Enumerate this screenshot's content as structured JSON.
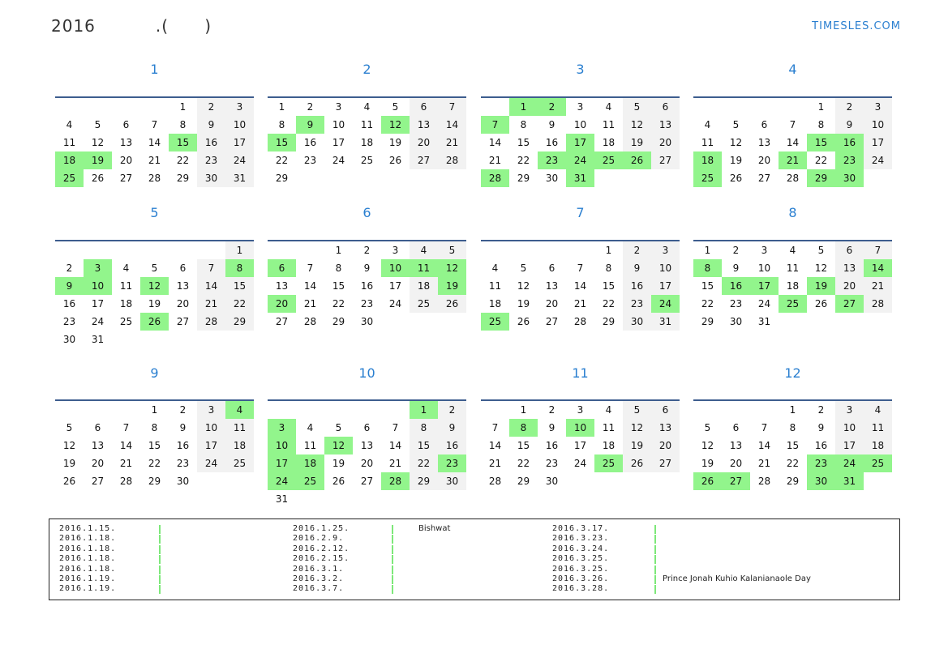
{
  "header": {
    "year": "2016",
    "title_rest": ".(      )",
    "brand": "TIMESLES.COM"
  },
  "colors": {
    "accent": "#2a7fd0",
    "holiday": "#92f58c",
    "weekend": "#f2f2f2",
    "rule": "#3d5d8e"
  },
  "months": [
    {
      "name": "1",
      "holidays": [
        15,
        18,
        19,
        25
      ],
      "weeks": [
        [
          0,
          0,
          0,
          0,
          1,
          2,
          3
        ],
        [
          4,
          5,
          6,
          7,
          8,
          9,
          10
        ],
        [
          11,
          12,
          13,
          14,
          15,
          16,
          17
        ],
        [
          18,
          19,
          20,
          21,
          22,
          23,
          24
        ],
        [
          25,
          26,
          27,
          28,
          29,
          30,
          31
        ]
      ]
    },
    {
      "name": "2",
      "holidays": [
        9,
        12,
        15
      ],
      "weeks": [
        [
          1,
          2,
          3,
          4,
          5,
          6,
          7
        ],
        [
          8,
          9,
          10,
          11,
          12,
          13,
          14
        ],
        [
          15,
          16,
          17,
          18,
          19,
          20,
          21
        ],
        [
          22,
          23,
          24,
          25,
          26,
          27,
          28
        ],
        [
          29,
          0,
          0,
          0,
          0,
          0,
          0
        ]
      ]
    },
    {
      "name": "3",
      "holidays": [
        1,
        2,
        7,
        17,
        23,
        24,
        25,
        26,
        28,
        31
      ],
      "weeks": [
        [
          0,
          1,
          2,
          3,
          4,
          5,
          6
        ],
        [
          7,
          8,
          9,
          10,
          11,
          12,
          13
        ],
        [
          14,
          15,
          16,
          17,
          18,
          19,
          20
        ],
        [
          21,
          22,
          23,
          24,
          25,
          26,
          27
        ],
        [
          28,
          29,
          30,
          31,
          0,
          0,
          0
        ]
      ]
    },
    {
      "name": "4",
      "holidays": [
        15,
        16,
        18,
        21,
        23,
        25,
        29,
        30
      ],
      "weeks": [
        [
          0,
          0,
          0,
          0,
          1,
          2,
          3
        ],
        [
          4,
          5,
          6,
          7,
          8,
          9,
          10
        ],
        [
          11,
          12,
          13,
          14,
          15,
          16,
          17
        ],
        [
          18,
          19,
          20,
          21,
          22,
          23,
          24
        ],
        [
          25,
          26,
          27,
          28,
          29,
          30,
          0
        ]
      ]
    },
    {
      "name": "5",
      "holidays": [
        3,
        8,
        9,
        10,
        12,
        26
      ],
      "weeks": [
        [
          0,
          0,
          0,
          0,
          0,
          0,
          1
        ],
        [
          2,
          3,
          4,
          5,
          6,
          7,
          8
        ],
        [
          9,
          10,
          11,
          12,
          13,
          14,
          15
        ],
        [
          16,
          17,
          18,
          19,
          20,
          21,
          22
        ],
        [
          23,
          24,
          25,
          26,
          27,
          28,
          29
        ],
        [
          30,
          31,
          0,
          0,
          0,
          0,
          0
        ]
      ]
    },
    {
      "name": "6",
      "holidays": [
        6,
        10,
        11,
        12,
        19,
        20
      ],
      "weeks": [
        [
          0,
          0,
          1,
          2,
          3,
          4,
          5
        ],
        [
          6,
          7,
          8,
          9,
          10,
          11,
          12
        ],
        [
          13,
          14,
          15,
          16,
          17,
          18,
          19
        ],
        [
          20,
          21,
          22,
          23,
          24,
          25,
          26
        ],
        [
          27,
          28,
          29,
          30,
          0,
          0,
          0
        ]
      ]
    },
    {
      "name": "7",
      "holidays": [
        24,
        25
      ],
      "weeks": [
        [
          0,
          0,
          0,
          0,
          1,
          2,
          3
        ],
        [
          4,
          5,
          6,
          7,
          8,
          9,
          10
        ],
        [
          11,
          12,
          13,
          14,
          15,
          16,
          17
        ],
        [
          18,
          19,
          20,
          21,
          22,
          23,
          24
        ],
        [
          25,
          26,
          27,
          28,
          29,
          30,
          31
        ]
      ]
    },
    {
      "name": "8",
      "holidays": [
        8,
        14,
        16,
        17,
        19,
        25,
        27
      ],
      "weeks": [
        [
          1,
          2,
          3,
          4,
          5,
          6,
          7
        ],
        [
          8,
          9,
          10,
          11,
          12,
          13,
          14
        ],
        [
          15,
          16,
          17,
          18,
          19,
          20,
          21
        ],
        [
          22,
          23,
          24,
          25,
          26,
          27,
          28
        ],
        [
          29,
          30,
          31,
          0,
          0,
          0,
          0
        ]
      ]
    },
    {
      "name": "9",
      "holidays": [
        4
      ],
      "weeks": [
        [
          0,
          0,
          0,
          1,
          2,
          3,
          4
        ],
        [
          5,
          6,
          7,
          8,
          9,
          10,
          11
        ],
        [
          12,
          13,
          14,
          15,
          16,
          17,
          18
        ],
        [
          19,
          20,
          21,
          22,
          23,
          24,
          25
        ],
        [
          26,
          27,
          28,
          29,
          30,
          0,
          0
        ]
      ]
    },
    {
      "name": "10",
      "holidays": [
        1,
        3,
        10,
        12,
        17,
        18,
        23,
        24,
        25,
        28
      ],
      "weeks": [
        [
          0,
          0,
          0,
          0,
          0,
          1,
          2
        ],
        [
          3,
          4,
          5,
          6,
          7,
          8,
          9
        ],
        [
          10,
          11,
          12,
          13,
          14,
          15,
          16
        ],
        [
          17,
          18,
          19,
          20,
          21,
          22,
          23
        ],
        [
          24,
          25,
          26,
          27,
          28,
          29,
          30
        ],
        [
          31,
          0,
          0,
          0,
          0,
          0,
          0
        ]
      ]
    },
    {
      "name": "11",
      "holidays": [
        8,
        10,
        25
      ],
      "weeks": [
        [
          0,
          1,
          2,
          3,
          4,
          5,
          6
        ],
        [
          7,
          8,
          9,
          10,
          11,
          12,
          13
        ],
        [
          14,
          15,
          16,
          17,
          18,
          19,
          20
        ],
        [
          21,
          22,
          23,
          24,
          25,
          26,
          27
        ],
        [
          28,
          29,
          30,
          0,
          0,
          0,
          0
        ]
      ]
    },
    {
      "name": "12",
      "holidays": [
        23,
        24,
        25,
        26,
        27,
        30,
        31
      ],
      "weeks": [
        [
          0,
          0,
          0,
          1,
          2,
          3,
          4
        ],
        [
          5,
          6,
          7,
          8,
          9,
          10,
          11
        ],
        [
          12,
          13,
          14,
          15,
          16,
          17,
          18
        ],
        [
          19,
          20,
          21,
          22,
          23,
          24,
          25
        ],
        [
          26,
          27,
          28,
          29,
          30,
          31,
          0
        ]
      ]
    }
  ],
  "holiday_list": [
    [
      {
        "date": "2016.1.15.",
        "name": ""
      },
      {
        "date": "2016.1.18.",
        "name": ""
      },
      {
        "date": "2016.1.18.",
        "name": ""
      },
      {
        "date": "2016.1.18.",
        "name": ""
      },
      {
        "date": "2016.1.18.",
        "name": ""
      },
      {
        "date": "2016.1.19.",
        "name": ""
      },
      {
        "date": "2016.1.19.",
        "name": ""
      }
    ],
    [
      {
        "date": "2016.1.25.",
        "name": "Bishwat"
      },
      {
        "date": "2016.2.9.",
        "name": ""
      },
      {
        "date": "2016.2.12.",
        "name": ""
      },
      {
        "date": "2016.2.15.",
        "name": ""
      },
      {
        "date": "2016.3.1.",
        "name": ""
      },
      {
        "date": "2016.3.2.",
        "name": ""
      },
      {
        "date": "2016.3.7.",
        "name": ""
      }
    ],
    [
      {
        "date": "2016.3.17.",
        "name": ""
      },
      {
        "date": "2016.3.23.",
        "name": ""
      },
      {
        "date": "2016.3.24.",
        "name": ""
      },
      {
        "date": "2016.3.25.",
        "name": ""
      },
      {
        "date": "2016.3.25.",
        "name": ""
      },
      {
        "date": "2016.3.26.",
        "name": "Prince Jonah Kuhio Kalanianaole Day"
      },
      {
        "date": "2016.3.28.",
        "name": ""
      }
    ]
  ]
}
